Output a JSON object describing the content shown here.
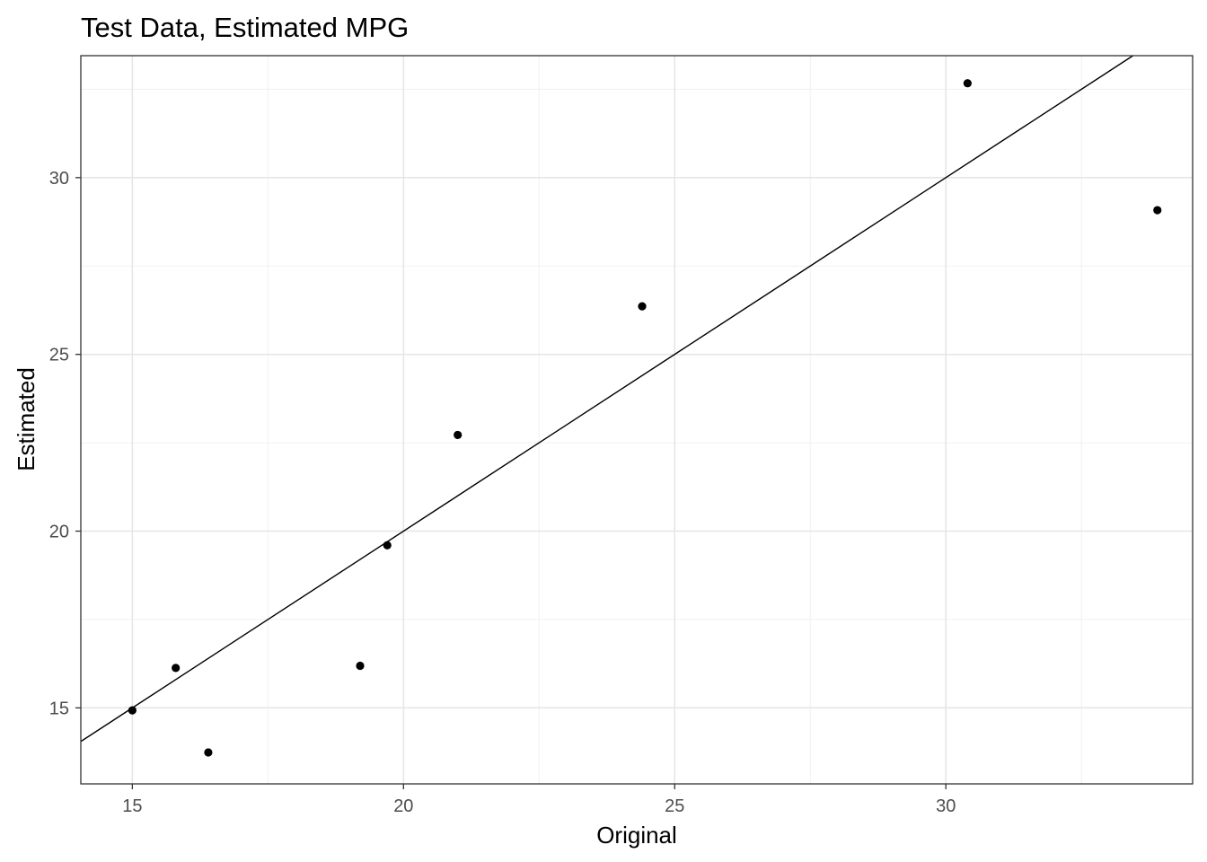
{
  "chart_data": {
    "type": "scatter",
    "title": "Test Data, Estimated MPG",
    "xlabel": "Original",
    "ylabel": "Estimated",
    "xlim": [
      14.05,
      34.55
    ],
    "ylim": [
      12.85,
      33.45
    ],
    "x_ticks": [
      15,
      20,
      25,
      30
    ],
    "y_ticks": [
      15,
      20,
      25,
      30
    ],
    "x_tick_labels": [
      "15",
      "20",
      "25",
      "30"
    ],
    "y_tick_labels": [
      "15",
      "20",
      "25",
      "30"
    ],
    "x_minor_ticks": [
      17.5,
      22.5,
      27.5,
      32.5
    ],
    "y_minor_ticks": [
      17.5,
      22.5,
      27.5,
      32.5
    ],
    "grid": true,
    "theme": "black-and-white",
    "reference_line": {
      "slope": 1,
      "intercept": 0
    },
    "point_color": "#000000",
    "series": [
      {
        "x": [
          15.0,
          15.8,
          16.4,
          19.2,
          19.7,
          21.0,
          24.4,
          30.4,
          33.9
        ],
        "y": [
          14.93,
          16.13,
          13.74,
          16.19,
          19.6,
          22.72,
          26.36,
          32.67,
          29.08
        ]
      }
    ]
  }
}
